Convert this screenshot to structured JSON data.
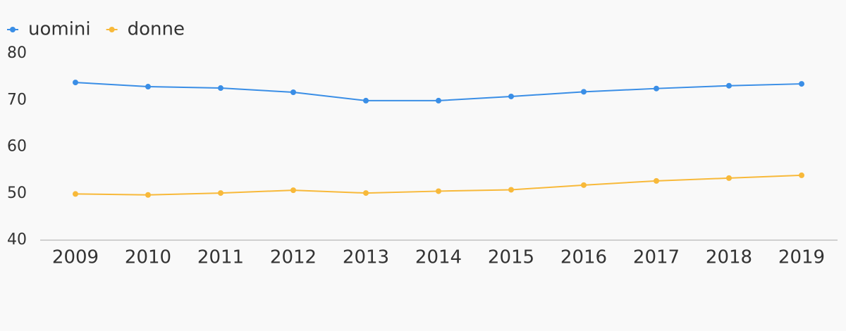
{
  "chart_data": {
    "type": "line",
    "categories": [
      "2009",
      "2010",
      "2011",
      "2012",
      "2013",
      "2014",
      "2015",
      "2016",
      "2017",
      "2018",
      "2019"
    ],
    "series": [
      {
        "name": "uomini",
        "color": "#3a8ee6",
        "values": [
          73.8,
          72.9,
          72.6,
          71.7,
          69.9,
          69.9,
          70.8,
          71.8,
          72.5,
          73.1,
          73.5
        ]
      },
      {
        "name": "donne",
        "color": "#f8b93a",
        "values": [
          49.9,
          49.7,
          50.1,
          50.7,
          50.1,
          50.5,
          50.8,
          51.8,
          52.7,
          53.3,
          53.9
        ]
      }
    ],
    "ylim": [
      40,
      80
    ],
    "yticks": [
      40,
      50,
      60,
      70,
      80
    ],
    "grid": false,
    "legend": "top-left"
  }
}
